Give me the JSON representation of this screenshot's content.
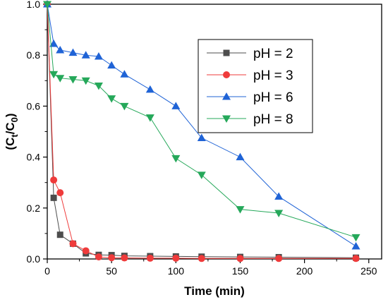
{
  "chart_data": {
    "type": "line",
    "xlabel": "Time (min)",
    "ylabel": {
      "open": "(C",
      "sub1": "t",
      "mid": "/C",
      "sub2": "0",
      "close": ")"
    },
    "xlim": [
      0,
      260
    ],
    "ylim": [
      0,
      1.0
    ],
    "x_ticks": [
      "0",
      "50",
      "100",
      "150",
      "200",
      "250"
    ],
    "x_tick_values": [
      0,
      50,
      100,
      150,
      200,
      250
    ],
    "y_ticks": [
      "0.0",
      "0.2",
      "0.4",
      "0.6",
      "0.8",
      "1.0"
    ],
    "y_tick_values": [
      0,
      0.2,
      0.4,
      0.6,
      0.8,
      1.0
    ],
    "legend_position": "top-right",
    "series": [
      {
        "name": "pH = 2",
        "color": "#4d4d4d",
        "marker": "square",
        "x": [
          0,
          5,
          10,
          20,
          30,
          40,
          50,
          60,
          80,
          100,
          120,
          150,
          180,
          240
        ],
        "y": [
          1.0,
          0.24,
          0.095,
          0.06,
          0.022,
          0.016,
          0.015,
          0.012,
          0.011,
          0.01,
          0.009,
          0.008,
          0.007,
          0.005
        ]
      },
      {
        "name": "pH = 3",
        "color": "#ef3b3b",
        "marker": "circle",
        "x": [
          0,
          5,
          10,
          20,
          30,
          40,
          50,
          60,
          80,
          100,
          120,
          150,
          180,
          240
        ],
        "y": [
          1.0,
          0.31,
          0.26,
          0.06,
          0.032,
          0.008,
          0.005,
          0.004,
          0.003,
          0.003,
          0.002,
          0.002,
          0.002,
          0.002
        ]
      },
      {
        "name": "pH = 6",
        "color": "#1f63d6",
        "marker": "triangle-up",
        "x": [
          0,
          5,
          10,
          20,
          30,
          40,
          50,
          60,
          80,
          100,
          120,
          150,
          180,
          240
        ],
        "y": [
          1.0,
          0.845,
          0.82,
          0.81,
          0.8,
          0.795,
          0.76,
          0.725,
          0.665,
          0.6,
          0.475,
          0.4,
          0.245,
          0.05
        ]
      },
      {
        "name": "pH = 8",
        "color": "#25a85a",
        "marker": "triangle-down",
        "x": [
          0,
          5,
          10,
          20,
          30,
          40,
          50,
          60,
          80,
          100,
          120,
          150,
          180,
          240
        ],
        "y": [
          1.0,
          0.725,
          0.71,
          0.705,
          0.7,
          0.68,
          0.63,
          0.6,
          0.555,
          0.395,
          0.33,
          0.195,
          0.18,
          0.085
        ]
      }
    ]
  }
}
